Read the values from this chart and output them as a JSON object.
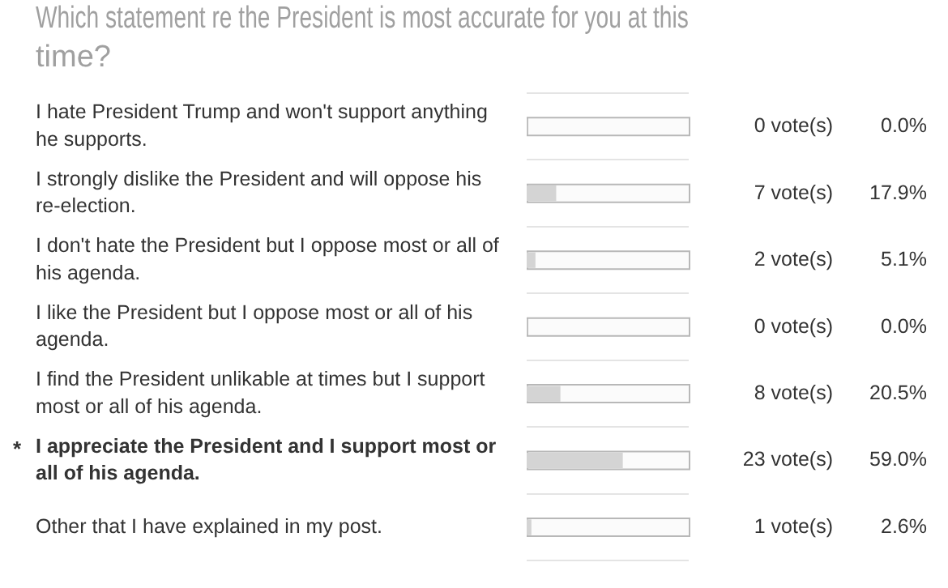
{
  "chart_data": {
    "type": "bar",
    "orientation": "horizontal",
    "title": "Which statement re the President is most accurate for you at this time?",
    "categories": [
      "I hate President Trump and won't support anything he supports.",
      "I strongly dislike the President and will oppose his re-election.",
      "I don't hate the President but I oppose most or all of his agenda.",
      "I like the President but I oppose most or all of his agenda.",
      "I find the President unlikable at times but I support most or all of his agenda.",
      "I appreciate the President and I support most or all of his agenda.",
      "Other that I have explained in my post."
    ],
    "values": [
      0.0,
      17.9,
      5.1,
      0.0,
      20.5,
      59.0,
      2.6
    ],
    "value_labels": [
      "0.0%",
      "17.9%",
      "5.1%",
      "0.0%",
      "20.5%",
      "59.0%",
      "2.6%"
    ],
    "color": "#d4d4d4",
    "xlim": [
      0,
      100
    ],
    "tick_labels": "y",
    "grid": "y",
    "annotations": [
      "0 vote(s)",
      "7 vote(s)",
      "2 vote(s)",
      "0 vote(s)",
      "8 vote(s)",
      "23 vote(s)",
      "1 vote(s)",
      "*"
    ]
  }
}
